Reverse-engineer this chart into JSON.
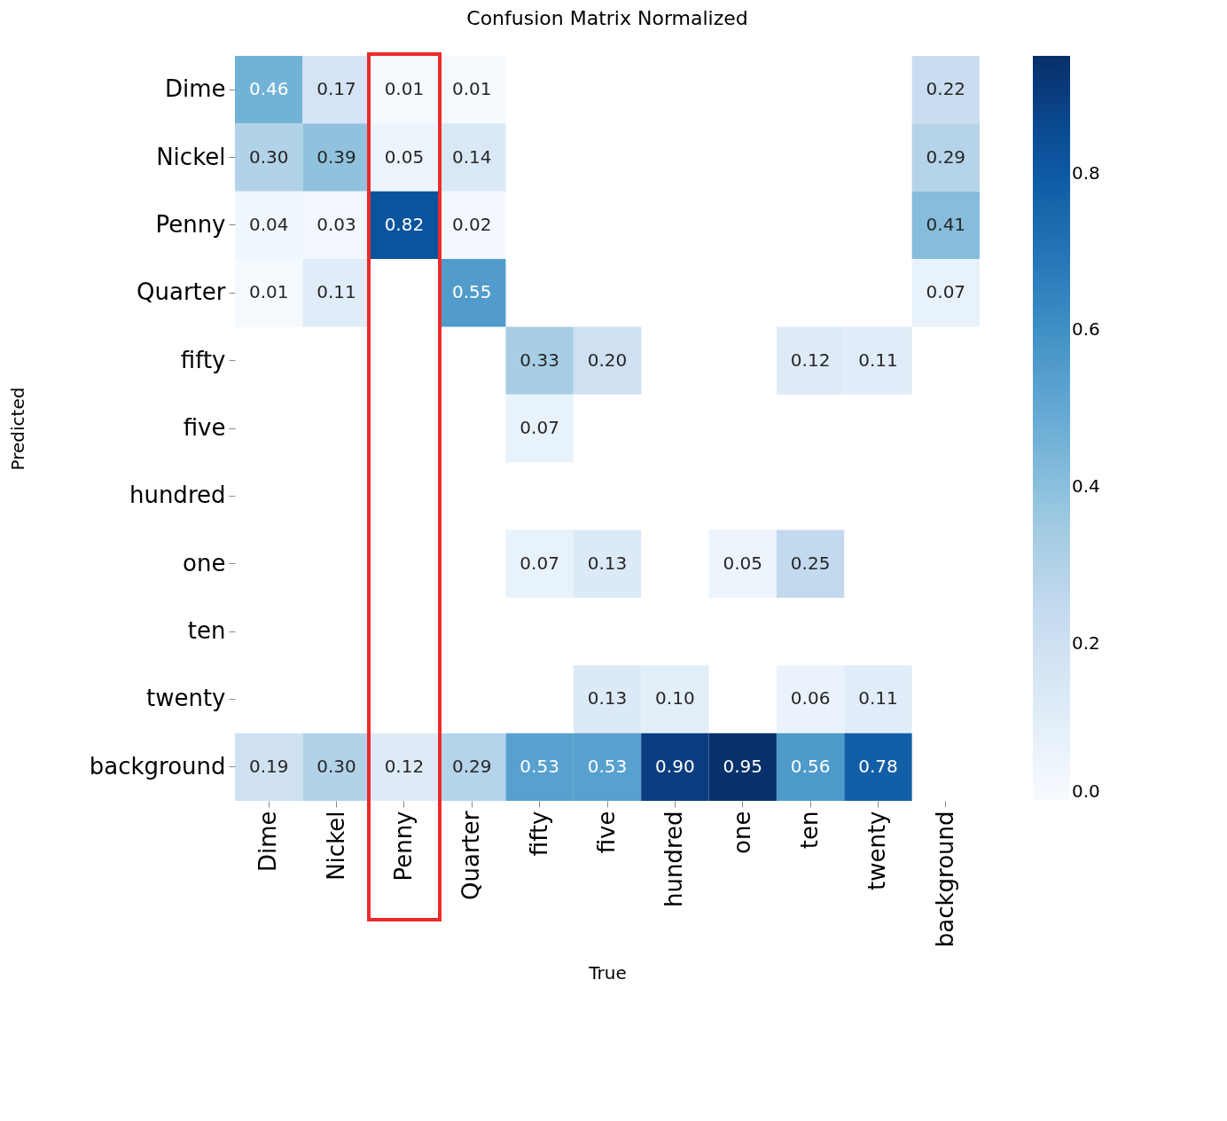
{
  "chart_data": {
    "type": "heatmap",
    "title": "Confusion Matrix Normalized",
    "xlabel": "True",
    "ylabel": "Predicted",
    "categories": [
      "Dime",
      "Nickel",
      "Penny",
      "Quarter",
      "fifty",
      "five",
      "hundred",
      "one",
      "ten",
      "twenty",
      "background"
    ],
    "y_categories": [
      "Dime",
      "Nickel",
      "Penny",
      "Quarter",
      "fifty",
      "five",
      "hundred",
      "one",
      "ten",
      "twenty",
      "background"
    ],
    "cells": [
      [
        0.46,
        0.17,
        0.01,
        0.01,
        null,
        null,
        null,
        null,
        null,
        null,
        0.22
      ],
      [
        0.3,
        0.39,
        0.05,
        0.14,
        null,
        null,
        null,
        null,
        null,
        null,
        0.29
      ],
      [
        0.04,
        0.03,
        0.82,
        0.02,
        null,
        null,
        null,
        null,
        null,
        null,
        0.41
      ],
      [
        0.01,
        0.11,
        null,
        0.55,
        null,
        null,
        null,
        null,
        null,
        null,
        0.07
      ],
      [
        null,
        null,
        null,
        null,
        0.33,
        0.2,
        null,
        null,
        0.12,
        0.11,
        null
      ],
      [
        null,
        null,
        null,
        null,
        0.07,
        null,
        null,
        null,
        null,
        null,
        null
      ],
      [
        null,
        null,
        null,
        null,
        null,
        null,
        null,
        null,
        null,
        null,
        null
      ],
      [
        null,
        null,
        null,
        null,
        0.07,
        0.13,
        null,
        0.05,
        0.25,
        null,
        null
      ],
      [
        null,
        null,
        null,
        null,
        null,
        null,
        null,
        null,
        null,
        null,
        null
      ],
      [
        null,
        null,
        null,
        null,
        null,
        0.13,
        0.1,
        null,
        0.06,
        0.11,
        null
      ],
      [
        0.19,
        0.3,
        0.12,
        0.29,
        0.53,
        0.53,
        0.9,
        0.95,
        0.56,
        0.78,
        null
      ]
    ],
    "cell_labels": [
      [
        "0.46",
        "0.17",
        "0.01",
        "0.01",
        null,
        null,
        null,
        null,
        null,
        null,
        "0.22"
      ],
      [
        "0.30",
        "0.39",
        "0.05",
        "0.14",
        null,
        null,
        null,
        null,
        null,
        null,
        "0.29"
      ],
      [
        "0.04",
        "0.03",
        "0.82",
        "0.02",
        null,
        null,
        null,
        null,
        null,
        null,
        "0.41"
      ],
      [
        "0.01",
        "0.11",
        null,
        "0.55",
        null,
        null,
        null,
        null,
        null,
        null,
        "0.07"
      ],
      [
        null,
        null,
        null,
        null,
        "0.33",
        "0.20",
        null,
        null,
        "0.12",
        "0.11",
        null
      ],
      [
        null,
        null,
        null,
        null,
        "0.07",
        null,
        null,
        null,
        null,
        null,
        null
      ],
      [
        null,
        null,
        null,
        null,
        null,
        null,
        null,
        null,
        null,
        null,
        null
      ],
      [
        null,
        null,
        null,
        null,
        "0.07",
        "0.13",
        null,
        "0.05",
        "0.25",
        null,
        null
      ],
      [
        null,
        null,
        null,
        null,
        null,
        null,
        null,
        null,
        null,
        null,
        null
      ],
      [
        null,
        null,
        null,
        null,
        null,
        "0.13",
        "0.10",
        null,
        "0.06",
        "0.11",
        null
      ],
      [
        "0.19",
        "0.30",
        "0.12",
        "0.29",
        "0.53",
        "0.53",
        "0.90",
        "0.95",
        "0.56",
        "0.78",
        null
      ]
    ],
    "clim": [
      0,
      0.95
    ],
    "cticks": [
      {
        "value": 0,
        "label": "0.0"
      },
      {
        "value": 0.2,
        "label": "0.2"
      },
      {
        "value": 0.4,
        "label": "0.4"
      },
      {
        "value": 0.6,
        "label": "0.6"
      },
      {
        "value": 0.8,
        "label": "0.8"
      }
    ],
    "data_labels": true
  }
}
